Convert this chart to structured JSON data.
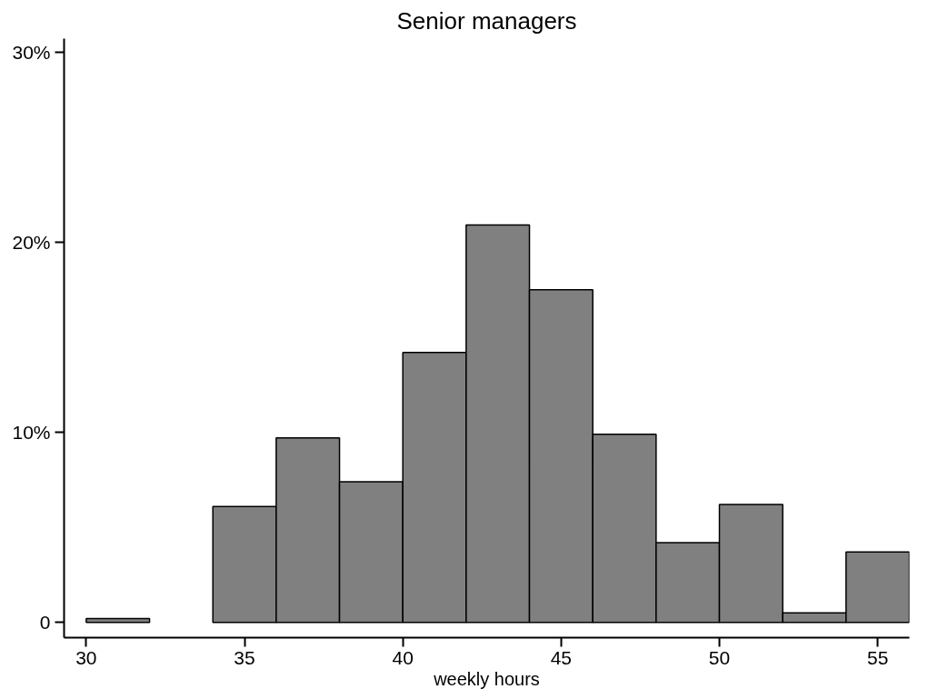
{
  "chart_data": {
    "type": "histogram",
    "title": "Senior managers",
    "xlabel": "weekly hours",
    "bins": [
      30,
      32,
      34,
      36,
      38,
      40,
      42,
      44,
      46,
      48,
      50,
      52,
      54,
      56
    ],
    "values": [
      0.2,
      0,
      6.1,
      9.7,
      7.4,
      14.2,
      20.9,
      17.5,
      9.9,
      4.2,
      6.2,
      0.5,
      3.7
    ],
    "color": "#808080",
    "xlim": [
      29.3,
      56
    ],
    "xticks": [
      30,
      35,
      40,
      45,
      50,
      55
    ],
    "ylim": [
      -0.8,
      30.7
    ],
    "yticks": [
      {
        "value": 0,
        "label": "0"
      },
      {
        "value": 10,
        "label": "10%"
      },
      {
        "value": 20,
        "label": "20%"
      },
      {
        "value": 30,
        "label": "30%"
      }
    ],
    "grid": false
  }
}
